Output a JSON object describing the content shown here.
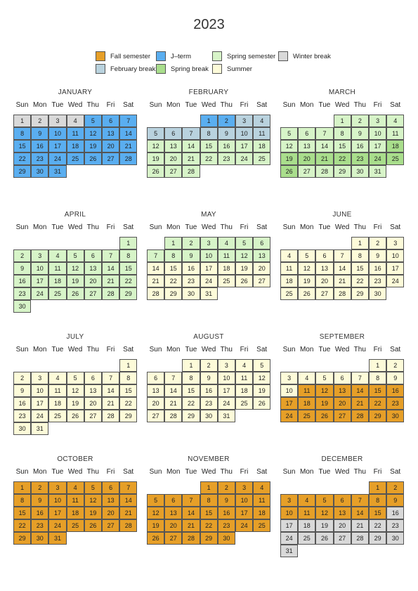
{
  "title": "2023",
  "weekdays": [
    "Sun",
    "Mon",
    "Tue",
    "Wed",
    "Thu",
    "Fri",
    "Sat"
  ],
  "legend": [
    {
      "key": "fall",
      "label": "Fall semester",
      "color": "#e69f28"
    },
    {
      "key": "jterm",
      "label": "J–term",
      "color": "#5aaef0"
    },
    {
      "key": "spring",
      "label": "Spring semester",
      "color": "#d7f4c8"
    },
    {
      "key": "winter",
      "label": "Winter break",
      "color": "#d9d9d9"
    },
    {
      "key": "feb",
      "label": "February break",
      "color": "#b9d2de"
    },
    {
      "key": "sbreak",
      "label": "Spring break",
      "color": "#a9de8c"
    },
    {
      "key": "summer",
      "label": "Summer",
      "color": "#fdfbd9"
    }
  ],
  "months": [
    {
      "name": "JANUARY",
      "days": 31,
      "startDow": 0,
      "ranges": [
        [
          1,
          4,
          "winter"
        ],
        [
          5,
          31,
          "jterm"
        ]
      ]
    },
    {
      "name": "FEBRUARY",
      "days": 28,
      "startDow": 3,
      "ranges": [
        [
          1,
          2,
          "jterm"
        ],
        [
          3,
          11,
          "feb"
        ],
        [
          12,
          28,
          "spring"
        ]
      ]
    },
    {
      "name": "MARCH",
      "days": 31,
      "startDow": 3,
      "ranges": [
        [
          1,
          17,
          "spring"
        ],
        [
          18,
          26,
          "sbreak"
        ],
        [
          27,
          31,
          "spring"
        ]
      ]
    },
    {
      "name": "APRIL",
      "days": 30,
      "startDow": 6,
      "ranges": [
        [
          1,
          30,
          "spring"
        ]
      ]
    },
    {
      "name": "MAY",
      "days": 31,
      "startDow": 1,
      "ranges": [
        [
          1,
          13,
          "spring"
        ],
        [
          14,
          31,
          "summer"
        ]
      ]
    },
    {
      "name": "JUNE",
      "days": 30,
      "startDow": 4,
      "ranges": [
        [
          1,
          30,
          "summer"
        ]
      ]
    },
    {
      "name": "JULY",
      "days": 31,
      "startDow": 6,
      "ranges": [
        [
          1,
          31,
          "summer"
        ]
      ]
    },
    {
      "name": "AUGUST",
      "days": 31,
      "startDow": 2,
      "ranges": [
        [
          1,
          31,
          "summer"
        ]
      ]
    },
    {
      "name": "SEPTEMBER",
      "days": 30,
      "startDow": 5,
      "ranges": [
        [
          1,
          10,
          "summer"
        ],
        [
          11,
          30,
          "fall"
        ]
      ]
    },
    {
      "name": "OCTOBER",
      "days": 31,
      "startDow": 0,
      "ranges": [
        [
          1,
          31,
          "fall"
        ]
      ]
    },
    {
      "name": "NOVEMBER",
      "days": 30,
      "startDow": 3,
      "ranges": [
        [
          1,
          30,
          "fall"
        ]
      ]
    },
    {
      "name": "DECEMBER",
      "days": 31,
      "startDow": 5,
      "ranges": [
        [
          1,
          15,
          "fall"
        ],
        [
          16,
          31,
          "winter"
        ]
      ]
    }
  ]
}
